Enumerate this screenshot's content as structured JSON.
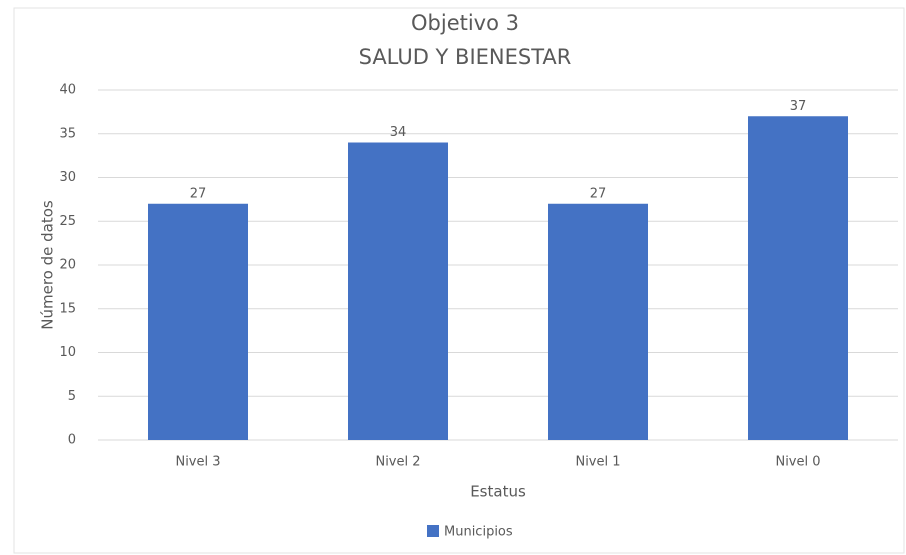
{
  "chart_data": {
    "type": "bar",
    "title": "Objetivo 3",
    "subtitle": "SALUD Y BIENESTAR",
    "x_label": "Estatus",
    "y_label": "Número de datos",
    "categories": [
      "Nivel 3",
      "Nivel 2",
      "Nivel 1",
      "Nivel 0"
    ],
    "series": [
      {
        "name": "Municipios",
        "color": "#4472c4",
        "values": [
          27,
          34,
          27,
          37
        ]
      }
    ],
    "ylim": [
      0,
      40
    ],
    "yticks": [
      0,
      5,
      10,
      15,
      20,
      25,
      30,
      35,
      40
    ],
    "grid": true,
    "legend": "bottom"
  }
}
